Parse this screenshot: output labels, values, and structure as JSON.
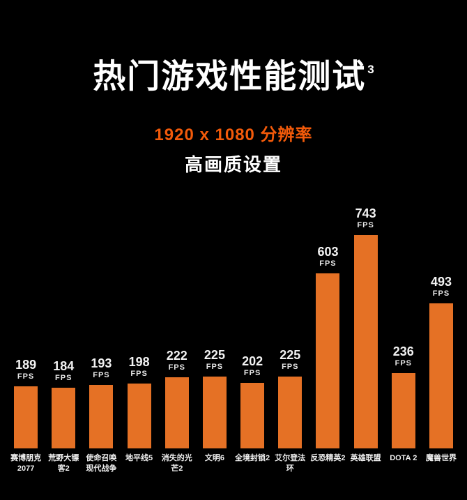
{
  "page": {
    "background": "#000000"
  },
  "colors": {
    "background": "#000000",
    "bar": "#E57125",
    "accent": "#F25A0A",
    "text": "#FFFFFF"
  },
  "header": {
    "title": "热门游戏性能测试",
    "title_superscript": "3",
    "subtitle_resolution": "1920 x 1080 分辨率",
    "subtitle_quality": "高画质设置"
  },
  "chart_data": {
    "type": "bar",
    "title": "热门游戏性能测试",
    "subtitle": "1920 x 1080 分辨率 高画质设置",
    "unit": "FPS",
    "categories": [
      "赛博朋克\n2077",
      "荒野大镖客2",
      "使命召唤\n现代战争",
      "地平线5",
      "消失的光芒2",
      "文明6",
      "全境封锁2",
      "艾尔登法环",
      "反恐精英2",
      "英雄联盟",
      "DOTA 2",
      "魔兽世界"
    ],
    "values": [
      189,
      184,
      193,
      198,
      222,
      225,
      202,
      225,
      603,
      743,
      236,
      493
    ],
    "value_label_format": "{value}\nFPS",
    "xlabel": "",
    "ylabel": "",
    "ylim": [
      0,
      800
    ],
    "grid": false,
    "legend": "none",
    "bar_color": "#E57125",
    "background_color": "#000000"
  }
}
